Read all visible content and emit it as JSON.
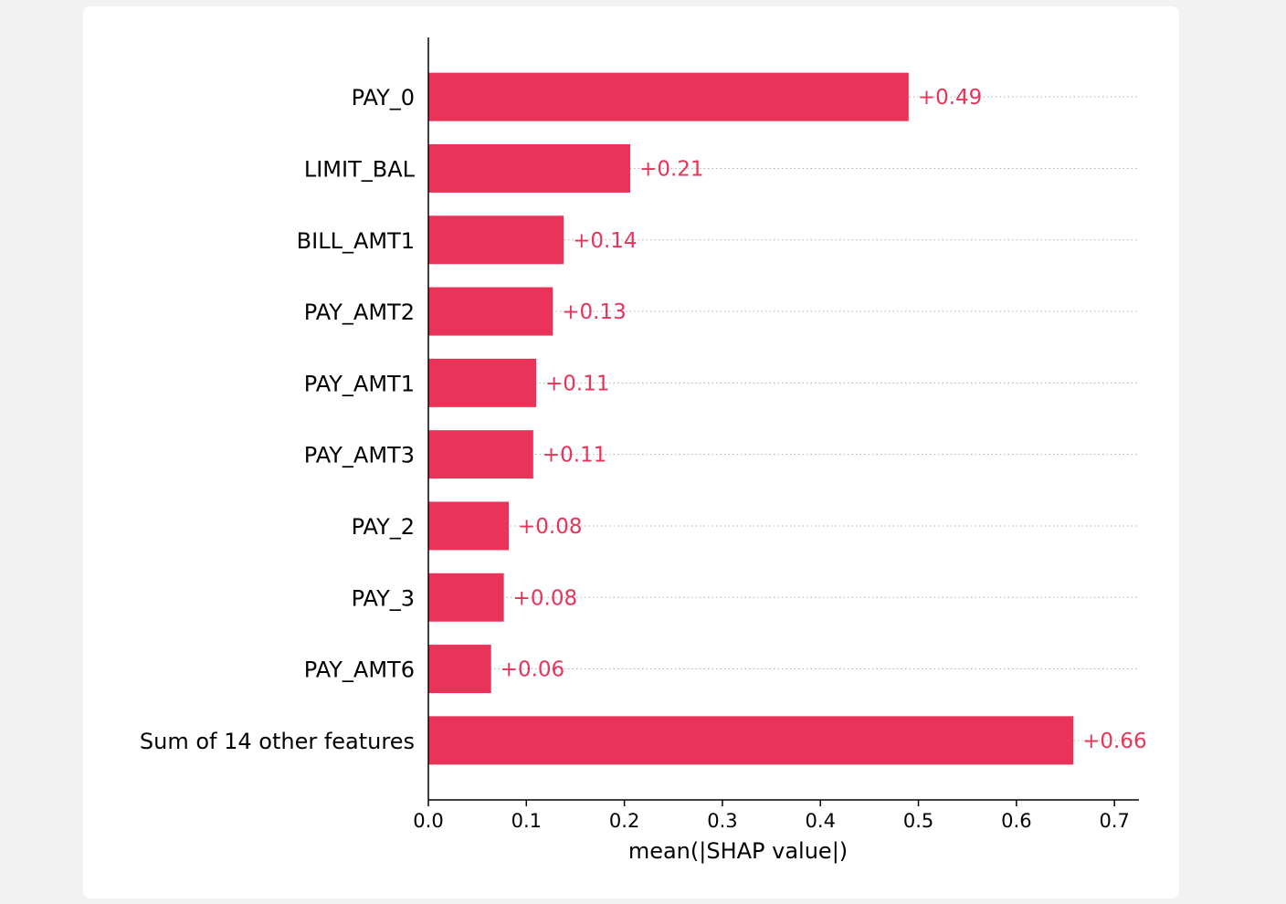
{
  "chart_data": {
    "type": "bar",
    "orientation": "horizontal",
    "categories": [
      "PAY_0",
      "LIMIT_BAL",
      "BILL_AMT1",
      "PAY_AMT2",
      "PAY_AMT1",
      "PAY_AMT3",
      "PAY_2",
      "PAY_3",
      "PAY_AMT6",
      "Sum of 14 other features"
    ],
    "values": [
      0.49,
      0.206,
      0.138,
      0.127,
      0.11,
      0.107,
      0.082,
      0.077,
      0.064,
      0.658
    ],
    "value_labels": [
      "+0.49",
      "+0.21",
      "+0.14",
      "+0.13",
      "+0.11",
      "+0.11",
      "+0.08",
      "+0.08",
      "+0.06",
      "+0.66"
    ],
    "xlabel": "mean(|SHAP value|)",
    "ylabel": "",
    "title": "",
    "xlim": [
      0,
      0.725
    ],
    "xticks": [
      0.0,
      0.1,
      0.2,
      0.3,
      0.4,
      0.5,
      0.6,
      0.7
    ],
    "xtick_labels": [
      "0.0",
      "0.1",
      "0.2",
      "0.3",
      "0.4",
      "0.5",
      "0.6",
      "0.7"
    ],
    "bar_color": "#ea3358",
    "grid": "dotted horizontal guide per row"
  }
}
